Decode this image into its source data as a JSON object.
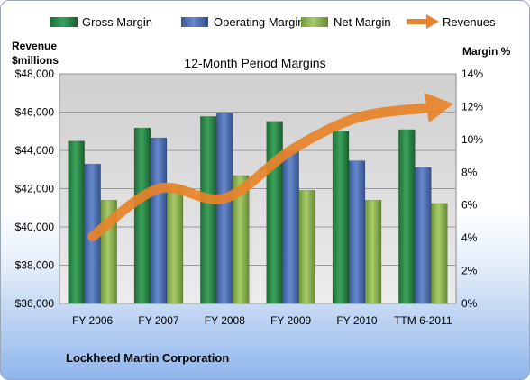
{
  "chart_data": {
    "type": "bar",
    "title": "12-Month Period Margins",
    "ylabel_left_line1": "Revenue",
    "ylabel_left_line2": "$millions",
    "ylabel_right": "Margin %",
    "footer": "Lockheed Martin Corporation",
    "categories": [
      "FY 2006",
      "FY 2007",
      "FY 2008",
      "FY 2009",
      "FY 2010",
      "TTM 6-2011"
    ],
    "left_axis": {
      "min": 36000,
      "max": 48000,
      "step": 2000,
      "tick_labels": [
        "$36,000",
        "$38,000",
        "$40,000",
        "$42,000",
        "$44,000",
        "$46,000",
        "$48,000"
      ]
    },
    "right_axis": {
      "min": 0,
      "max": 14,
      "step": 2,
      "tick_labels": [
        "0%",
        "2%",
        "4%",
        "6%",
        "8%",
        "10%",
        "12%",
        "14%"
      ]
    },
    "series": [
      {
        "name": "Gross Margin",
        "axis": "right",
        "type": "bar",
        "color": "#2e8b4a",
        "values": [
          9.9,
          10.7,
          11.4,
          11.1,
          10.5,
          10.6
        ]
      },
      {
        "name": "Operating Margin",
        "axis": "right",
        "type": "bar",
        "color": "#4f73b8",
        "values": [
          8.5,
          10.1,
          11.6,
          9.3,
          8.7,
          8.3
        ]
      },
      {
        "name": "Net Margin",
        "axis": "right",
        "type": "bar",
        "color": "#8fb84f",
        "values": [
          6.3,
          7.2,
          7.8,
          6.9,
          6.3,
          6.1
        ]
      },
      {
        "name": "Revenues",
        "axis": "left",
        "type": "line",
        "color": "#e8832a",
        "values": [
          39500,
          42000,
          41500,
          44000,
          45700,
          46200
        ]
      }
    ],
    "grid": true,
    "legend": "top"
  }
}
